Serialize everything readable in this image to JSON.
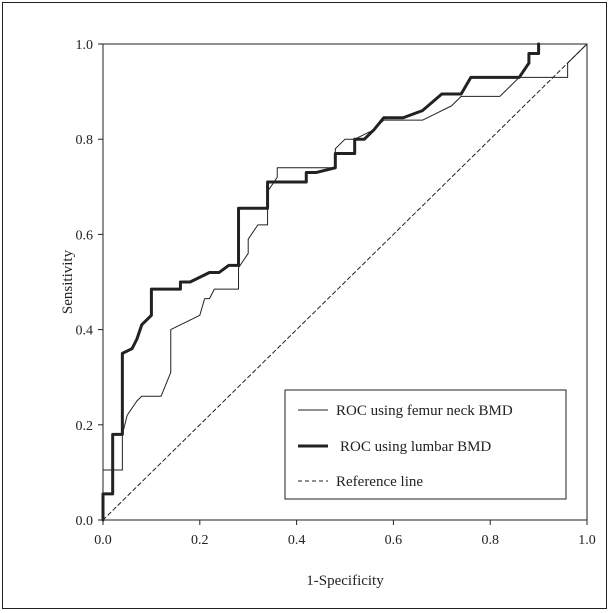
{
  "chart_data": {
    "type": "line",
    "title": "",
    "xlabel": "1-Specificity",
    "ylabel": "Sensitivity",
    "xlim": [
      0,
      1
    ],
    "ylim": [
      0,
      1
    ],
    "x_ticks": [
      "0.0",
      "0.2",
      "0.4",
      "0.6",
      "0.8",
      "1.0"
    ],
    "y_ticks": [
      "0.0",
      "0.2",
      "0.4",
      "0.6",
      "0.8",
      "1.0"
    ],
    "grid": false,
    "legend_position": "bottom-right",
    "series": [
      {
        "name": "ROC using femur neck BMD",
        "style": "thin",
        "color": "#222222",
        "points": [
          [
            0.0,
            0.0
          ],
          [
            0.0,
            0.105
          ],
          [
            0.04,
            0.105
          ],
          [
            0.04,
            0.18
          ],
          [
            0.05,
            0.22
          ],
          [
            0.07,
            0.25
          ],
          [
            0.08,
            0.26
          ],
          [
            0.12,
            0.26
          ],
          [
            0.14,
            0.31
          ],
          [
            0.14,
            0.4
          ],
          [
            0.2,
            0.43
          ],
          [
            0.21,
            0.465
          ],
          [
            0.22,
            0.465
          ],
          [
            0.23,
            0.485
          ],
          [
            0.28,
            0.485
          ],
          [
            0.28,
            0.53
          ],
          [
            0.3,
            0.56
          ],
          [
            0.3,
            0.59
          ],
          [
            0.32,
            0.62
          ],
          [
            0.34,
            0.62
          ],
          [
            0.34,
            0.69
          ],
          [
            0.36,
            0.72
          ],
          [
            0.36,
            0.74
          ],
          [
            0.42,
            0.74
          ],
          [
            0.48,
            0.74
          ],
          [
            0.48,
            0.78
          ],
          [
            0.5,
            0.8
          ],
          [
            0.52,
            0.8
          ],
          [
            0.56,
            0.82
          ],
          [
            0.58,
            0.84
          ],
          [
            0.66,
            0.84
          ],
          [
            0.68,
            0.85
          ],
          [
            0.72,
            0.87
          ],
          [
            0.74,
            0.89
          ],
          [
            0.82,
            0.89
          ],
          [
            0.84,
            0.91
          ],
          [
            0.86,
            0.93
          ],
          [
            0.96,
            0.93
          ],
          [
            0.96,
            0.96
          ],
          [
            0.98,
            0.98
          ],
          [
            1.0,
            1.0
          ]
        ]
      },
      {
        "name": "ROC using lumbar BMD",
        "style": "thick",
        "color": "#222222",
        "points": [
          [
            0.0,
            0.0
          ],
          [
            0.0,
            0.055
          ],
          [
            0.02,
            0.055
          ],
          [
            0.02,
            0.18
          ],
          [
            0.04,
            0.18
          ],
          [
            0.04,
            0.35
          ],
          [
            0.06,
            0.36
          ],
          [
            0.07,
            0.38
          ],
          [
            0.08,
            0.41
          ],
          [
            0.09,
            0.42
          ],
          [
            0.1,
            0.43
          ],
          [
            0.1,
            0.485
          ],
          [
            0.16,
            0.485
          ],
          [
            0.16,
            0.5
          ],
          [
            0.18,
            0.5
          ],
          [
            0.2,
            0.51
          ],
          [
            0.22,
            0.52
          ],
          [
            0.24,
            0.52
          ],
          [
            0.26,
            0.535
          ],
          [
            0.28,
            0.535
          ],
          [
            0.28,
            0.655
          ],
          [
            0.34,
            0.655
          ],
          [
            0.34,
            0.71
          ],
          [
            0.42,
            0.71
          ],
          [
            0.42,
            0.73
          ],
          [
            0.44,
            0.73
          ],
          [
            0.48,
            0.74
          ],
          [
            0.48,
            0.77
          ],
          [
            0.52,
            0.77
          ],
          [
            0.52,
            0.8
          ],
          [
            0.54,
            0.8
          ],
          [
            0.56,
            0.82
          ],
          [
            0.58,
            0.845
          ],
          [
            0.62,
            0.845
          ],
          [
            0.66,
            0.86
          ],
          [
            0.7,
            0.895
          ],
          [
            0.74,
            0.895
          ],
          [
            0.76,
            0.93
          ],
          [
            0.86,
            0.93
          ],
          [
            0.88,
            0.96
          ],
          [
            0.88,
            0.98
          ],
          [
            0.9,
            0.98
          ],
          [
            0.9,
            1.0
          ]
        ]
      },
      {
        "name": "Reference line",
        "style": "dashed",
        "color": "#222222",
        "points": [
          [
            0.0,
            0.0
          ],
          [
            1.0,
            1.0
          ]
        ]
      }
    ]
  }
}
